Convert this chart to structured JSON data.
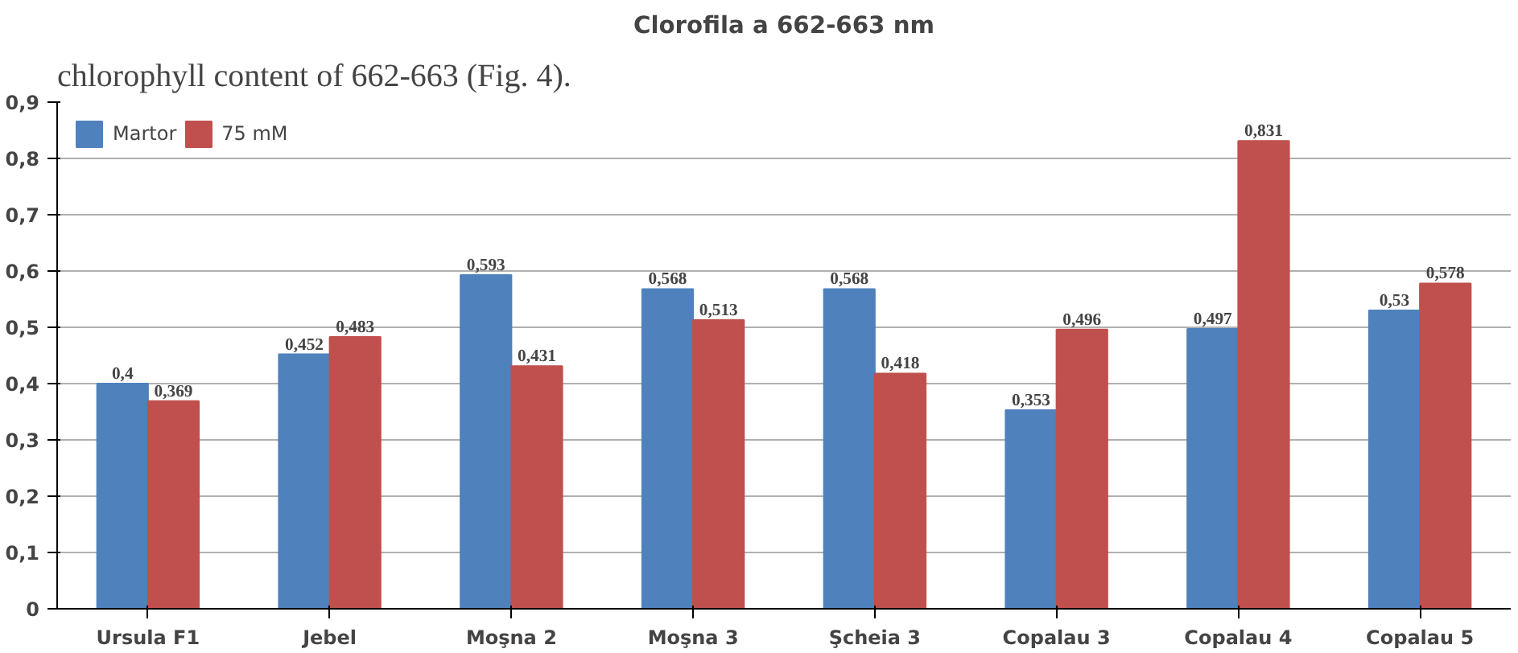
{
  "chart_data": {
    "type": "bar",
    "title": "Clorofila a 662-663 nm",
    "annotations": [
      "chlorophyll content of 662-663 (Fig. 4)."
    ],
    "categories": [
      "Ursula F1",
      "Jebel",
      "Moşna 2",
      "Moşna 3",
      "Şcheia 3",
      "Copalau 3",
      "Copalau 4",
      "Copalau 5"
    ],
    "series": [
      {
        "name": "Martor",
        "color": "#4f81bd",
        "values": [
          0.4,
          0.452,
          0.593,
          0.568,
          0.568,
          0.353,
          0.497,
          0.53
        ],
        "value_labels": [
          "0,4",
          "0,452",
          "0,593",
          "0,568",
          "0,568",
          "0,353",
          "0,497",
          "0,53"
        ]
      },
      {
        "name": "75 mM",
        "color": "#c0504d",
        "values": [
          0.369,
          0.483,
          0.431,
          0.513,
          0.418,
          0.496,
          0.831,
          0.578
        ],
        "value_labels": [
          "0,369",
          "0,483",
          "0,431",
          "0,513",
          "0,418",
          "0,496",
          "0,831",
          "0,578"
        ]
      }
    ],
    "ylim": [
      0,
      0.9
    ],
    "yticks": [
      {
        "value": 0,
        "label": "0"
      },
      {
        "value": 0.1,
        "label": "0,1"
      },
      {
        "value": 0.2,
        "label": "0,2"
      },
      {
        "value": 0.3,
        "label": "0,3"
      },
      {
        "value": 0.4,
        "label": "0,4"
      },
      {
        "value": 0.5,
        "label": "0,5"
      },
      {
        "value": 0.6,
        "label": "0,6"
      },
      {
        "value": 0.7,
        "label": "0,7"
      },
      {
        "value": 0.8,
        "label": "0,8"
      },
      {
        "value": 0.9,
        "label": "0,9"
      }
    ],
    "grid": "y",
    "legend": "top left"
  }
}
